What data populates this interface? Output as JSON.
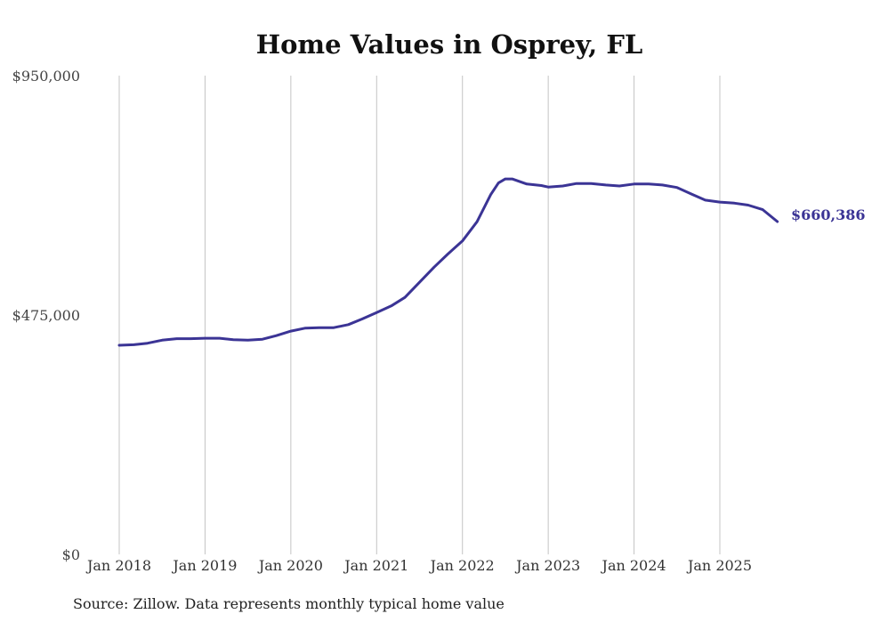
{
  "chart_data": {
    "type": "line",
    "title": "Home Values in Osprey, FL",
    "xlabel": "",
    "ylabel": "",
    "ylim": [
      0,
      950000
    ],
    "yticks": [
      {
        "value": 0,
        "label": "$0"
      },
      {
        "value": 475000,
        "label": "$475,000"
      },
      {
        "value": 950000,
        "label": "$950,000"
      }
    ],
    "xticks": [
      {
        "value": 2018,
        "label": "Jan 2018"
      },
      {
        "value": 2019,
        "label": "Jan 2019"
      },
      {
        "value": 2020,
        "label": "Jan 2020"
      },
      {
        "value": 2021,
        "label": "Jan 2021"
      },
      {
        "value": 2022,
        "label": "Jan 2022"
      },
      {
        "value": 2023,
        "label": "Jan 2023"
      },
      {
        "value": 2024,
        "label": "Jan 2024"
      },
      {
        "value": 2025,
        "label": "Jan 2025"
      }
    ],
    "xlim": [
      2018,
      2025.67
    ],
    "grid": "vertical",
    "series": [
      {
        "name": "Typical home value",
        "color": "#3b3495",
        "x": [
          2018.0,
          2018.17,
          2018.33,
          2018.5,
          2018.67,
          2018.83,
          2019.0,
          2019.17,
          2019.33,
          2019.5,
          2019.67,
          2019.83,
          2020.0,
          2020.17,
          2020.33,
          2020.5,
          2020.67,
          2020.83,
          2021.0,
          2021.17,
          2021.33,
          2021.5,
          2021.67,
          2021.83,
          2022.0,
          2022.17,
          2022.33,
          2022.42,
          2022.5,
          2022.58,
          2022.75,
          2022.92,
          2023.0,
          2023.17,
          2023.33,
          2023.5,
          2023.67,
          2023.83,
          2024.0,
          2024.17,
          2024.33,
          2024.5,
          2024.67,
          2024.83,
          2025.0,
          2025.17,
          2025.33,
          2025.5,
          2025.67
        ],
        "values": [
          415000,
          416000,
          419000,
          425000,
          428000,
          428000,
          429000,
          429000,
          426000,
          425000,
          427000,
          434000,
          443000,
          449000,
          450000,
          450000,
          456000,
          467000,
          480000,
          493000,
          510000,
          540000,
          570000,
          596000,
          622000,
          660000,
          714000,
          737000,
          745000,
          745000,
          735000,
          732000,
          729000,
          731000,
          736000,
          736000,
          733000,
          731000,
          735000,
          735000,
          733000,
          728000,
          715000,
          703000,
          699000,
          697000,
          693000,
          684000,
          660386
        ]
      }
    ],
    "end_label": "$660,386",
    "source_note": "Source: Zillow. Data represents monthly typical home value"
  }
}
